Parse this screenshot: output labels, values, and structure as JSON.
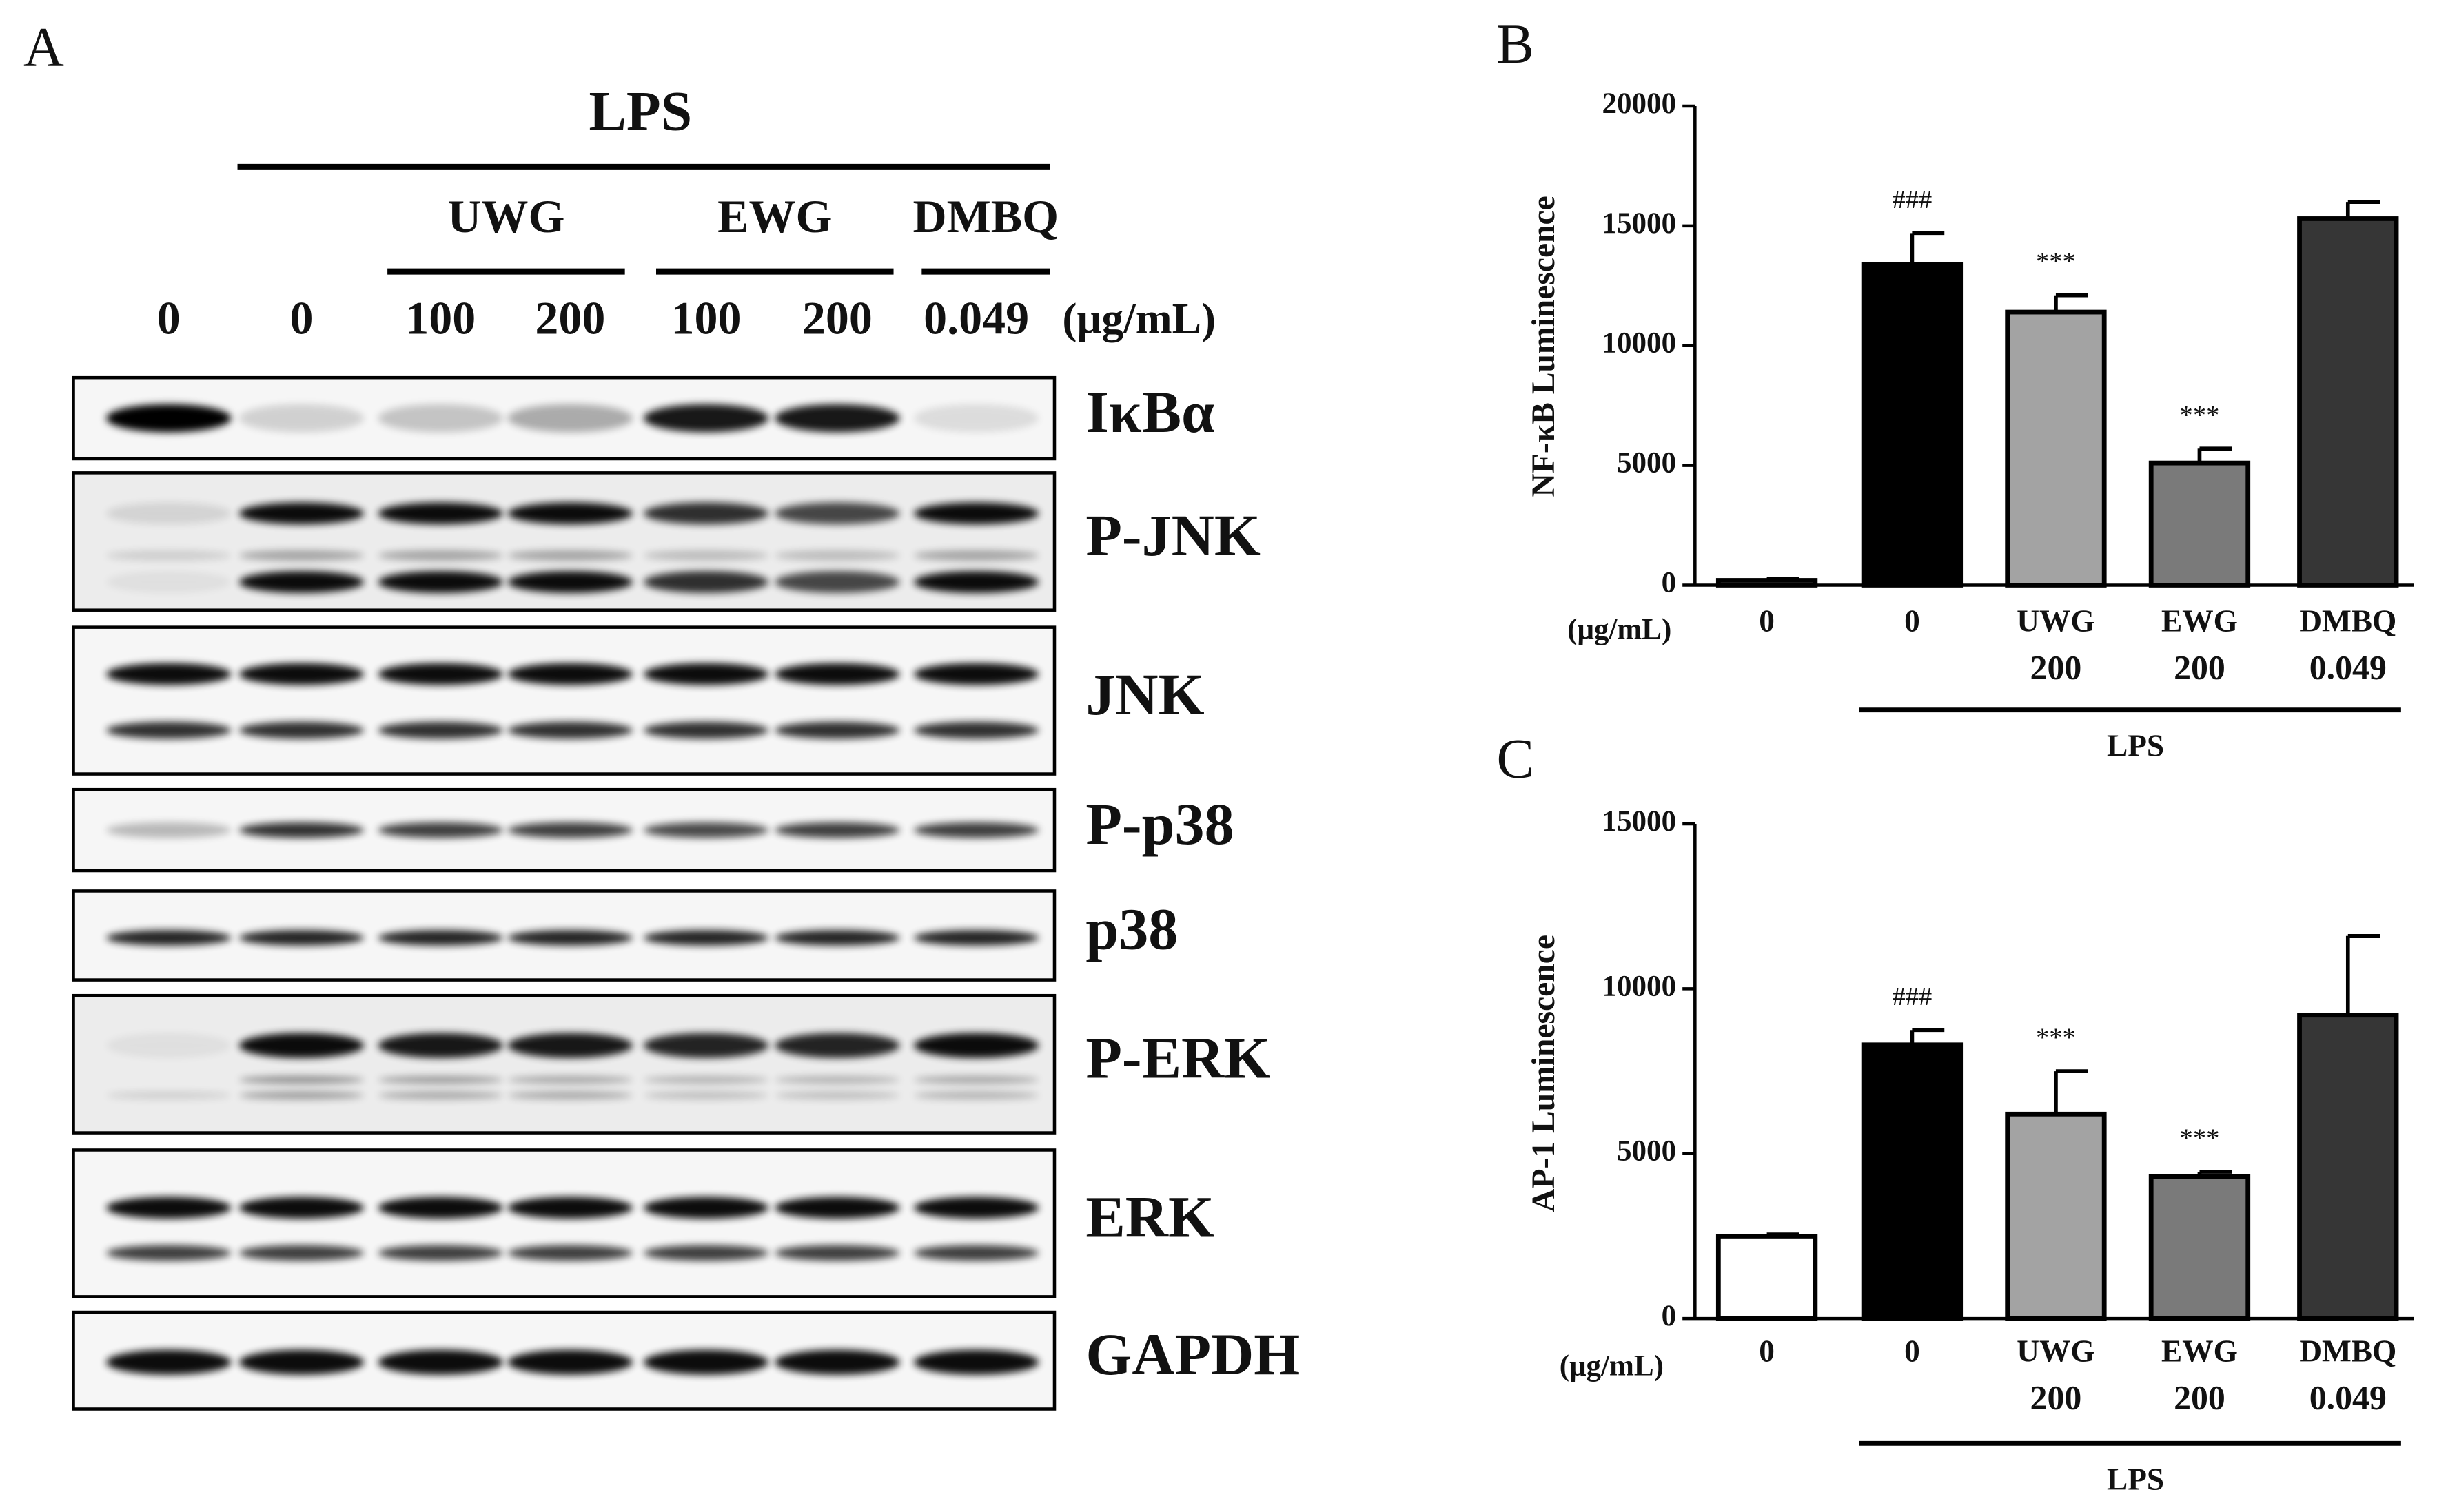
{
  "blot": {
    "label": "A",
    "treatment": "LPS",
    "groups": [
      "UWG",
      "EWG",
      "DMBQ"
    ],
    "doses": [
      "0",
      "0",
      "100",
      "200",
      "100",
      "200",
      "0.049"
    ],
    "unit": "(μg/mL)",
    "proteins": [
      "IκBα",
      "P-JNK",
      "JNK",
      "P-p38",
      "p38",
      "P-ERK",
      "ERK",
      "GAPDH"
    ]
  },
  "chart_data": [
    {
      "type": "bar",
      "panel_label": "B",
      "y_label": "NF-κB Luminescence",
      "categories": [
        "0",
        "0",
        "UWG",
        "EWG",
        "DMBQ"
      ],
      "doses": [
        null,
        null,
        "200",
        "200",
        "0.049"
      ],
      "unit": "(μg/mL)",
      "group_label": "LPS",
      "values": [
        200,
        13400,
        11400,
        5100,
        15300
      ],
      "errors": [
        50,
        1300,
        700,
        600,
        700
      ],
      "annotations": [
        null,
        "###",
        "***",
        "***",
        null
      ],
      "colors": [
        "#ffffff",
        "#000000",
        "#a3a3a3",
        "#7a7a7a",
        "#363636"
      ],
      "ylim": [
        0,
        20000
      ],
      "yticks": [
        0,
        5000,
        10000,
        15000,
        20000
      ]
    },
    {
      "type": "bar",
      "panel_label": "C",
      "y_label": "AP-1 Luminescence",
      "categories": [
        "0",
        "0",
        "UWG",
        "EWG",
        "DMBQ"
      ],
      "doses": [
        null,
        null,
        "200",
        "200",
        "0.049"
      ],
      "unit": "(μg/mL)",
      "group_label": "LPS",
      "values": [
        2500,
        8300,
        6200,
        4300,
        9200
      ],
      "errors": [
        50,
        450,
        1300,
        150,
        2400
      ],
      "annotations": [
        null,
        "###",
        "***",
        "***",
        null
      ],
      "colors": [
        "#ffffff",
        "#000000",
        "#a3a3a3",
        "#7a7a7a",
        "#363636"
      ],
      "ylim": [
        0,
        15000
      ],
      "yticks": [
        0,
        5000,
        10000,
        15000
      ]
    }
  ]
}
